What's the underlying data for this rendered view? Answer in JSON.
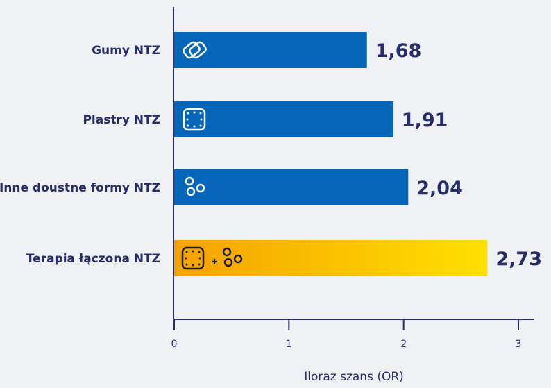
{
  "chart_data": {
    "type": "bar",
    "orientation": "horizontal",
    "categories": [
      "Gumy NTZ",
      "Plastry NTZ",
      "Inne doustne formy NTZ",
      "Terapia łączona NTZ"
    ],
    "values": [
      1.68,
      1.91,
      2.04,
      2.73
    ],
    "value_labels": [
      "1,68",
      "1,91",
      "2,04",
      "2,73"
    ],
    "icons": [
      "gum-icon",
      "patch-icon",
      "pills-icon",
      "combination-icon"
    ],
    "xlabel": "Iloraz szans (OR)",
    "xlim": [
      0,
      3
    ],
    "xticks": [
      0,
      1,
      2,
      3
    ],
    "xtick_labels": [
      "0",
      "1",
      "2",
      "3"
    ],
    "grid": false,
    "colors": {
      "bar": "#0565b8",
      "highlight_start": "#f5a200",
      "highlight_end": "#ffe000",
      "text": "#272c6c",
      "axis": "#272c6c",
      "background": "#eff1f4"
    }
  }
}
